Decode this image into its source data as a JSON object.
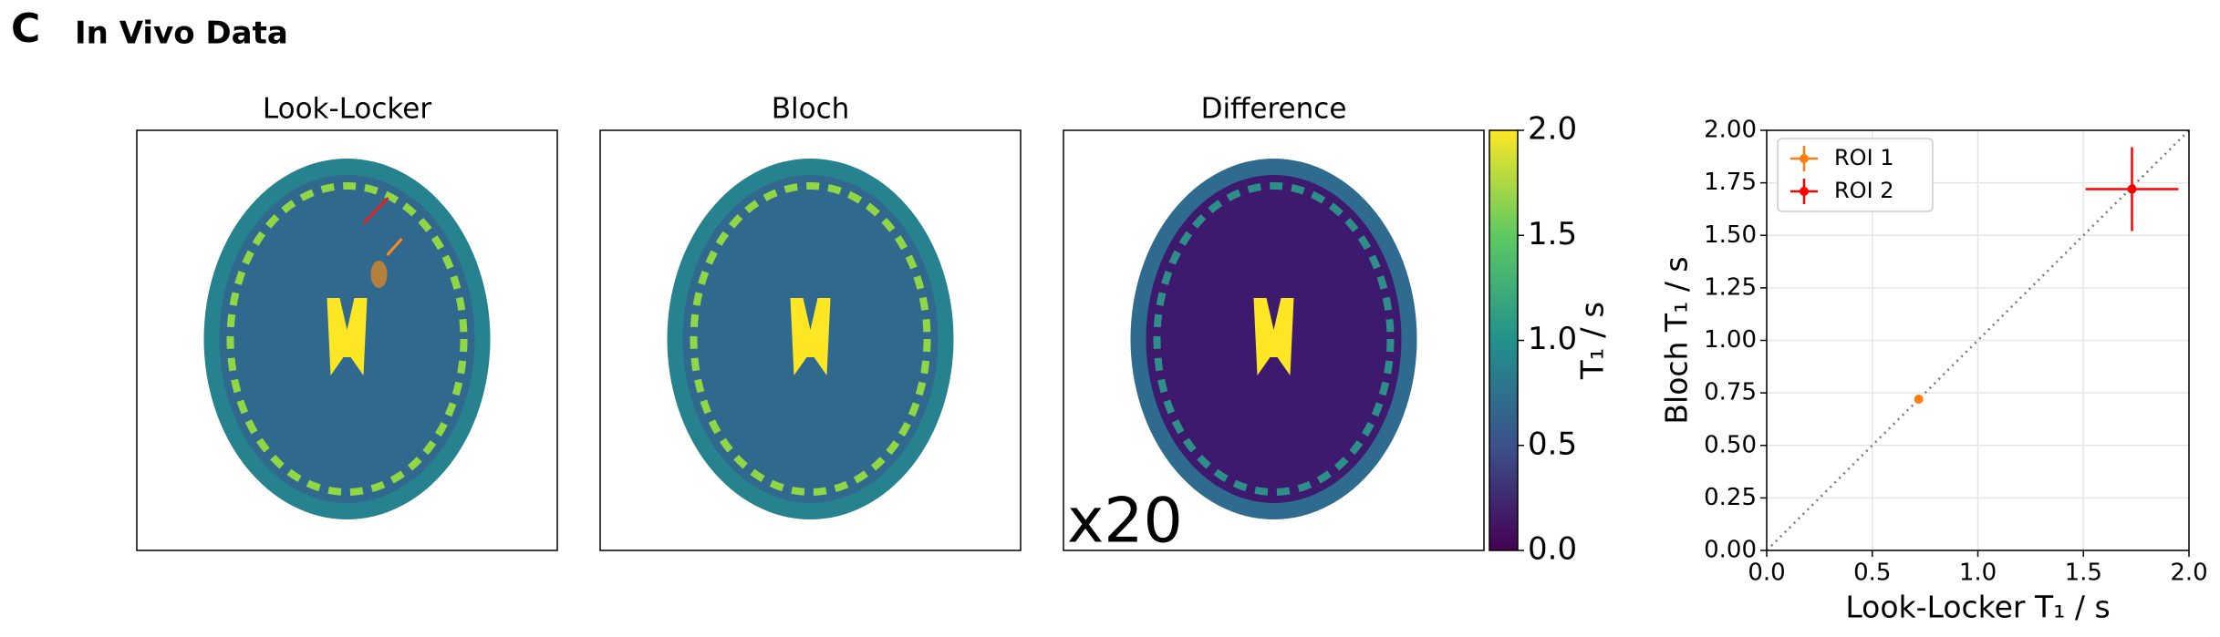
{
  "header": {
    "letter": "C",
    "title": "In Vivo Data"
  },
  "chart_data": [
    {
      "type": "heatmap",
      "panels": [
        "Look-Locker",
        "Bloch",
        "Difference"
      ],
      "annotation": "x20",
      "colorbar_label": "T₁ / s",
      "clim": [
        0,
        2
      ],
      "cticks": [
        {
          "value": 0,
          "label": "0.0"
        },
        0.5,
        {
          "value": 1,
          "label": "1.0"
        },
        1.5,
        {
          "value": 2,
          "label": "2.0"
        }
      ]
    },
    {
      "type": "scatter",
      "xlabel": "Look-Locker T₁ / s",
      "ylabel": "Bloch T₁ / s",
      "xlim": [
        0,
        2
      ],
      "ylim": [
        0,
        2
      ],
      "xticks": [
        {
          "value": 0,
          "label": "0.0"
        },
        0.5,
        {
          "value": 1,
          "label": "1.0"
        },
        1.5,
        {
          "value": 2,
          "label": "2.0"
        }
      ],
      "yticks": [
        {
          "value": 0,
          "label": "0.00"
        },
        0.25,
        {
          "value": 0.5,
          "label": "0.50"
        },
        0.75,
        {
          "value": 1,
          "label": "1.00"
        },
        1.25,
        {
          "value": 1.5,
          "label": "1.50"
        },
        1.75,
        {
          "value": 2,
          "label": "2.00"
        }
      ],
      "grid": true,
      "legend": "upper left",
      "series": [
        {
          "name": "ROI 1",
          "color": "#ff7f0e",
          "x": [
            0.72
          ],
          "values": [
            0.72
          ],
          "xerr": [
            0.01
          ],
          "yerr": [
            0.01
          ]
        },
        {
          "name": "ROI 2",
          "color": "#ff0000",
          "x": [
            1.73
          ],
          "values": [
            1.72
          ],
          "xerr": [
            0.22
          ],
          "yerr": [
            0.2
          ]
        }
      ]
    }
  ]
}
